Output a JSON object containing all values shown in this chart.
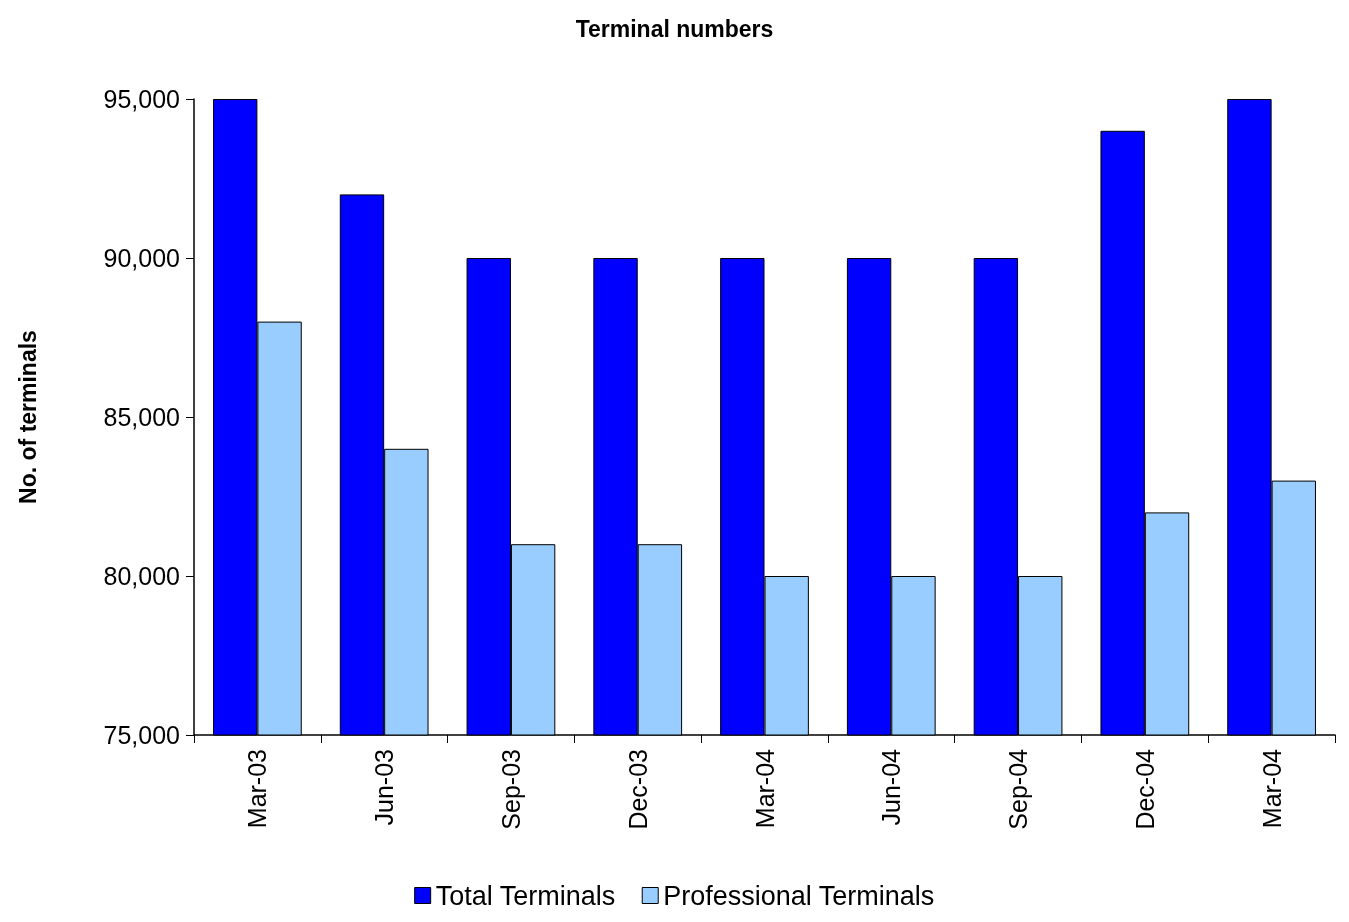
{
  "chart_data": {
    "type": "bar",
    "title": "Terminal numbers",
    "ylabel": "No. of terminals",
    "categories": [
      "Mar-03",
      "Jun-03",
      "Sep-03",
      "Dec-03",
      "Mar-04",
      "Jun-04",
      "Sep-04",
      "Dec-04",
      "Mar-04"
    ],
    "series": [
      {
        "name": "Total Terminals",
        "color": "#0000ff",
        "values": [
          95000,
          92000,
          90000,
          90000,
          90000,
          90000,
          90000,
          94000,
          95000
        ]
      },
      {
        "name": "Professional Terminals",
        "color": "#99ccff",
        "values": [
          88000,
          84000,
          81000,
          81000,
          80000,
          80000,
          80000,
          82000,
          83000
        ]
      }
    ],
    "ylim": [
      75000,
      95000
    ],
    "yticks": [
      {
        "value": 75000,
        "label": "75,000"
      },
      {
        "value": 80000,
        "label": "80,000"
      },
      {
        "value": 85000,
        "label": "85,000"
      },
      {
        "value": 90000,
        "label": "90,000"
      },
      {
        "value": 95000,
        "label": "95,000"
      }
    ],
    "grid": false,
    "legend": "bottom"
  }
}
